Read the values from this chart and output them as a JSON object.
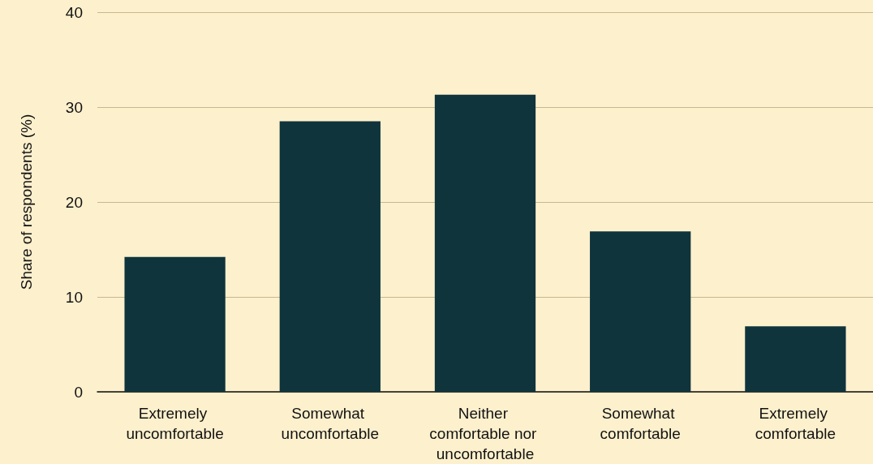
{
  "chart_data": {
    "type": "bar",
    "ylabel": "Share of respondents (%)",
    "categories": [
      "Extremely uncomfortable",
      "Somewhat uncomfortable",
      "Neither comfortable nor uncomfortable",
      "Somewhat comfortable",
      "Extremely comfortable"
    ],
    "values": [
      14.2,
      28.5,
      31.3,
      16.9,
      6.9
    ],
    "color": "#0f343c",
    "ylim": [
      0,
      40
    ],
    "yticks": [
      0,
      10,
      20,
      30,
      40
    ],
    "grid": "y"
  }
}
